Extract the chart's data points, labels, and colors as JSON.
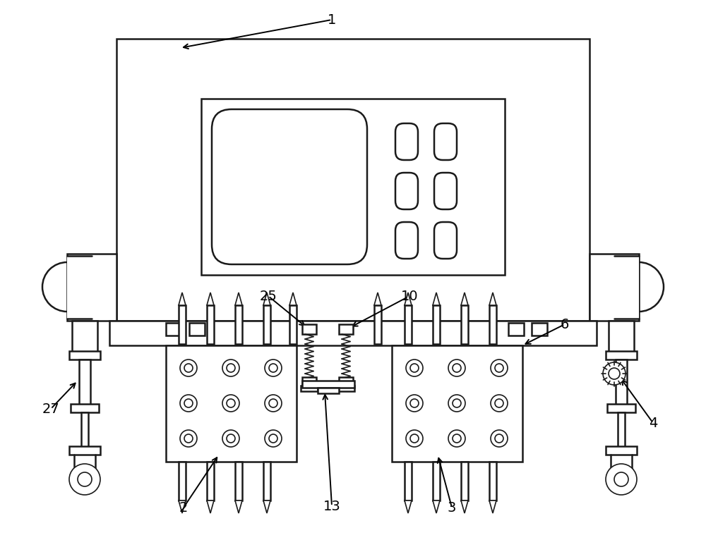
{
  "bg_color": "#ffffff",
  "line_color": "#1a1a1a",
  "fill_color": "#ffffff",
  "lw_main": 1.8,
  "lw_thin": 1.2,
  "lw_thick": 2.2
}
